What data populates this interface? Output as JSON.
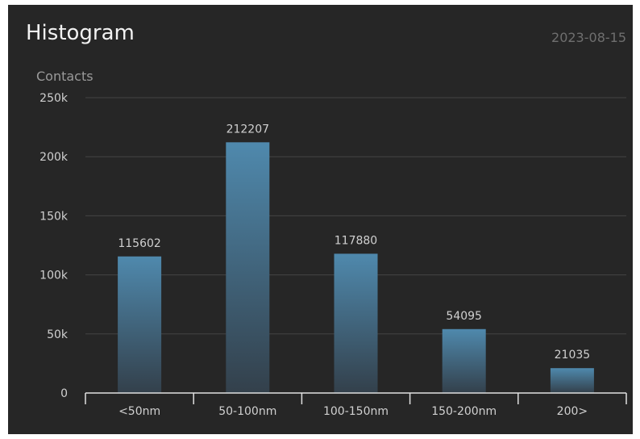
{
  "header": {
    "title": "Histogram",
    "date": "2023-08-15"
  },
  "colors": {
    "background": "#262626",
    "bar_top": "#4f89ad",
    "bar_bottom": "#33404b",
    "grid": "#444444",
    "axis": "#e0e0e0",
    "text": "#d0d0d0"
  },
  "chart_data": {
    "type": "bar",
    "title": "Histogram",
    "ylabel": "Contacts",
    "xlabel": "",
    "categories": [
      "<50nm",
      "50-100nm",
      "100-150nm",
      "150-200nm",
      "200>"
    ],
    "values": [
      115602,
      212207,
      117880,
      54095,
      21035
    ],
    "data_labels": [
      "115602",
      "212207",
      "117880",
      "54095",
      "21035"
    ],
    "ylim": [
      0,
      250000
    ],
    "yticks": [
      0,
      50000,
      100000,
      150000,
      200000,
      250000
    ],
    "ytick_labels": [
      "0",
      "50k",
      "100k",
      "150k",
      "200k",
      "250k"
    ],
    "grid": true,
    "legend": "none"
  }
}
